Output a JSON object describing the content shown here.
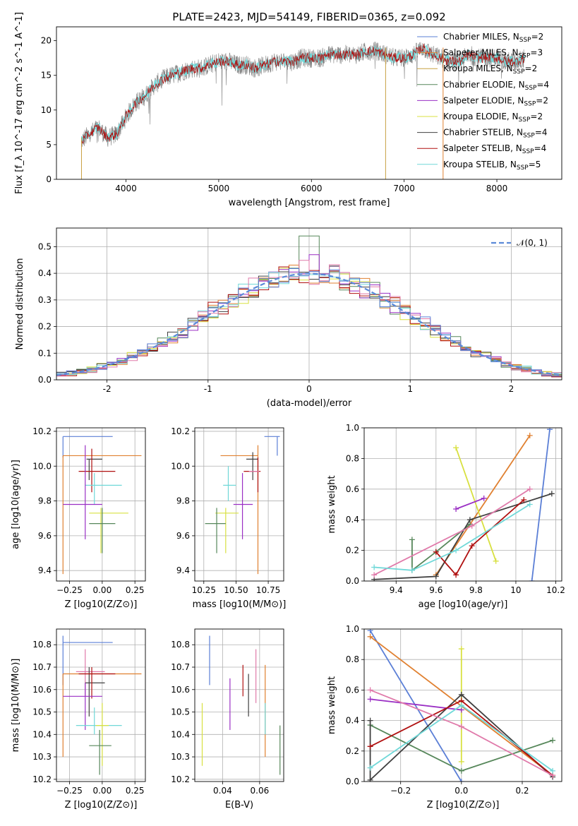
{
  "figure_title": "PLATE=2423, MJD=54149, FIBERID=0365, z=0.092",
  "colors": {
    "Chabrier MILES": "#5b7fd6",
    "Salpeter MILES": "#e08030",
    "Kroupa MILES": "#c8e038",
    "Chabrier ELODIE": "#56875a",
    "Salpeter ELODIE": "#9a2fc4",
    "Kroupa ELODIE": "#d8e040",
    "Chabrier STELIB": "#404040",
    "Salpeter STELIB": "#b01010",
    "Kroupa STELIB": "#70d8d8",
    "pink": "#e07aaa",
    "spectrum": "#808080",
    "gauss": "#5b8ad8"
  },
  "chart_data": [
    {
      "type": "line",
      "id": "spectrum",
      "title": "PLATE=2423, MJD=54149, FIBERID=0365, z=0.092",
      "xlabel": "wavelength [Angstrom, rest frame]",
      "ylabel": "Flux [f_λ 10^-17 erg cm^-2 s^-1 A^-1]",
      "xlim": [
        3250,
        8700
      ],
      "ylim": [
        0,
        22
      ],
      "xticks": [
        4000,
        5000,
        6000,
        7000,
        8000
      ],
      "yticks": [
        0,
        5,
        10,
        15,
        20
      ],
      "grid": false,
      "legend_position": "top-right",
      "legend": [
        {
          "label": "Chabrier MILES, N",
          "sub": "SSP",
          "suffix": "=2",
          "color": "#5b7fd6"
        },
        {
          "label": "Salpeter MILES, N",
          "sub": "SSP",
          "suffix": "=3",
          "color": "#e08030"
        },
        {
          "label": "Kroupa MILES, N",
          "sub": "SSP",
          "suffix": "=2",
          "color": "#c8a040"
        },
        {
          "label": "Chabrier ELODIE, N",
          "sub": "SSP",
          "suffix": "=4",
          "color": "#56875a"
        },
        {
          "label": "Salpeter ELODIE, N",
          "sub": "SSP",
          "suffix": "=2",
          "color": "#9a2fc4"
        },
        {
          "label": "Kroupa ELODIE, N",
          "sub": "SSP",
          "suffix": "=2",
          "color": "#d8e040"
        },
        {
          "label": "Chabrier STELIB, N",
          "sub": "SSP",
          "suffix": "=4",
          "color": "#404040"
        },
        {
          "label": "Salpeter STELIB, N",
          "sub": "SSP",
          "suffix": "=4",
          "color": "#b01010"
        },
        {
          "label": "Kroupa STELIB, N",
          "sub": "SSP",
          "suffix": "=5",
          "color": "#70d8d8"
        }
      ],
      "continuum_x": [
        3520,
        3600,
        3700,
        3800,
        3900,
        4000,
        4100,
        4200,
        4300,
        4400,
        4500,
        4600,
        4700,
        4800,
        4900,
        5000,
        5100,
        5200,
        5300,
        5400,
        5500,
        5600,
        5700,
        5800,
        5900,
        6000,
        6100,
        6200,
        6300,
        6400,
        6500,
        6600,
        6700,
        6800,
        6900,
        7000,
        7100,
        7200,
        7300,
        7400,
        7500,
        7600,
        7700,
        7800,
        7900,
        8000,
        8100,
        8200,
        8300
      ],
      "continuum_y": [
        5.5,
        6.5,
        7.5,
        6.0,
        6.5,
        9.0,
        11.0,
        12.0,
        13.5,
        14.5,
        15.0,
        15.5,
        16.0,
        16.0,
        16.5,
        17.0,
        17.0,
        16.5,
        16.5,
        16.0,
        16.5,
        17.0,
        17.0,
        17.0,
        17.5,
        17.5,
        17.5,
        18.0,
        18.0,
        18.0,
        18.0,
        18.5,
        18.5,
        18.0,
        17.5,
        17.5,
        18.0,
        19.0,
        18.0,
        17.5,
        17.0,
        17.0,
        18.0,
        17.5,
        17.5,
        17.5,
        17.0,
        17.0,
        17.5
      ],
      "noise_amplitude": 1.4,
      "spike_lines": [
        {
          "x": 3520,
          "ymin": 0,
          "ymax": 6,
          "color": "#c8a040"
        },
        {
          "x": 6800,
          "ymin": 0,
          "ymax": 19,
          "color": "#c8a040"
        },
        {
          "x": 7420,
          "ymin": 0,
          "ymax": 19,
          "color": "#e08030"
        }
      ]
    },
    {
      "type": "histogram",
      "id": "residuals",
      "xlabel": "(data-model)/error",
      "ylabel": "Normed distribution",
      "xlim": [
        -2.5,
        2.5
      ],
      "ylim": [
        0,
        0.57
      ],
      "xticks": [
        -2,
        -1,
        0,
        1,
        2
      ],
      "yticks": [
        0.0,
        0.1,
        0.2,
        0.3,
        0.4,
        0.5
      ],
      "grid": true,
      "legend_position": "top-right",
      "legend": [
        {
          "label": "𝒩(0, 1)",
          "style": "dashed",
          "color": "#5b8ad8"
        }
      ],
      "bin_start": -2.5,
      "bin_width": 0.1,
      "bins": 50,
      "series": [
        {
          "color": "#56875a",
          "spike_at": 0.0,
          "spike_value": 0.54
        },
        {
          "color": "#9a2fc4",
          "spike_at": 0.05,
          "spike_value": 0.47
        },
        {
          "color": "#e08030"
        },
        {
          "color": "#d8e040"
        },
        {
          "color": "#404040"
        },
        {
          "color": "#b01010"
        },
        {
          "color": "#70d8d8"
        },
        {
          "color": "#e07aaa"
        },
        {
          "color": "#5b7fd6"
        }
      ]
    },
    {
      "type": "errorbar",
      "id": "age_vs_Z",
      "xlabel": "Z [log10(Z/Z⊙)]",
      "ylabel": "age  [log10(age/yr)]",
      "xlim": [
        -0.35,
        0.33
      ],
      "ylim": [
        9.34,
        10.22
      ],
      "xticks": [
        -0.25,
        0.0,
        0.25
      ],
      "xticklabels": [
        "−0.25",
        "0.00",
        "0.25"
      ],
      "yticks": [
        9.4,
        9.6,
        9.8,
        10.0,
        10.2
      ],
      "grid": true,
      "points": [
        {
          "x": -0.3,
          "y": 10.17,
          "xlo": -0.3,
          "xhi": 0.08,
          "ylo": 10.05,
          "yhi": 10.17,
          "color": "#5b7fd6"
        },
        {
          "x": -0.3,
          "y": 10.06,
          "xlo": -0.3,
          "xhi": 0.3,
          "ylo": 10.06,
          "yhi": 10.06,
          "color": "#e08030"
        },
        {
          "x": -0.3,
          "y": 10.06,
          "xlo": -0.3,
          "xhi": -0.3,
          "ylo": 9.38,
          "yhi": 10.06,
          "color": "#e08030"
        },
        {
          "x": -0.1,
          "y": 10.04,
          "xlo": -0.12,
          "xhi": 0.0,
          "ylo": 9.92,
          "yhi": 10.04,
          "color": "#404040"
        },
        {
          "x": -0.08,
          "y": 9.97,
          "xlo": -0.18,
          "xhi": 0.1,
          "ylo": 9.85,
          "yhi": 10.1,
          "color": "#b01010"
        },
        {
          "x": -0.06,
          "y": 9.89,
          "xlo": -0.13,
          "xhi": 0.15,
          "ylo": 9.78,
          "yhi": 9.96,
          "color": "#70d8d8"
        },
        {
          "x": -0.13,
          "y": 9.78,
          "xlo": -0.3,
          "xhi": 0.0,
          "ylo": 9.58,
          "yhi": 10.12,
          "color": "#9a2fc4"
        },
        {
          "x": -0.01,
          "y": 9.73,
          "xlo": -0.1,
          "xhi": 0.2,
          "ylo": 9.5,
          "yhi": 9.76,
          "color": "#d8e040"
        },
        {
          "x": 0.0,
          "y": 9.67,
          "xlo": -0.1,
          "xhi": 0.1,
          "ylo": 9.5,
          "yhi": 9.76,
          "color": "#56875a"
        }
      ]
    },
    {
      "type": "errorbar",
      "id": "age_vs_mass",
      "xlabel": "mass [log10(M/M⊙)]",
      "ylabel": "",
      "xlim": [
        10.18,
        10.87
      ],
      "ylim": [
        9.34,
        10.22
      ],
      "xticks": [
        10.25,
        10.5,
        10.75
      ],
      "xticklabels": [
        "10.25",
        "10.50",
        "10.75"
      ],
      "yticks": [
        9.4,
        9.6,
        9.8,
        10.0,
        10.2
      ],
      "grid": true,
      "points": [
        {
          "x": 10.82,
          "y": 10.17,
          "xlo": 10.72,
          "xhi": 10.84,
          "ylo": 10.06,
          "yhi": 10.17,
          "color": "#5b7fd6"
        },
        {
          "x": 10.67,
          "y": 10.06,
          "xlo": 10.38,
          "xhi": 10.67,
          "ylo": 9.38,
          "yhi": 10.12,
          "color": "#e08030"
        },
        {
          "x": 10.63,
          "y": 10.04,
          "xlo": 10.58,
          "xhi": 10.67,
          "ylo": 9.92,
          "yhi": 10.08,
          "color": "#404040"
        },
        {
          "x": 10.67,
          "y": 9.97,
          "xlo": 10.56,
          "xhi": 10.69,
          "ylo": 9.85,
          "yhi": 10.05,
          "color": "#b01010"
        },
        {
          "x": 10.44,
          "y": 9.89,
          "xlo": 10.4,
          "xhi": 10.5,
          "ylo": 9.8,
          "yhi": 10.0,
          "color": "#70d8d8"
        },
        {
          "x": 10.55,
          "y": 9.78,
          "xlo": 10.48,
          "xhi": 10.63,
          "ylo": 9.58,
          "yhi": 9.96,
          "color": "#9a2fc4"
        },
        {
          "x": 10.42,
          "y": 9.73,
          "xlo": 10.34,
          "xhi": 10.52,
          "ylo": 9.5,
          "yhi": 9.76,
          "color": "#d8e040"
        },
        {
          "x": 10.35,
          "y": 9.67,
          "xlo": 10.26,
          "xhi": 10.42,
          "ylo": 9.5,
          "yhi": 9.76,
          "color": "#56875a"
        },
        {
          "x": 10.6,
          "y": 9.97,
          "xlo": 10.6,
          "xhi": 10.68,
          "ylo": 9.97,
          "yhi": 9.97,
          "color": "#e07aaa"
        }
      ]
    },
    {
      "type": "line",
      "id": "weight_vs_age",
      "xlabel": "age  [log10(age/yr)]",
      "ylabel": "mass weight",
      "xlim": [
        9.24,
        10.23
      ],
      "ylim": [
        0.0,
        1.0
      ],
      "xticks": [
        9.4,
        9.6,
        9.8,
        10.0,
        10.2
      ],
      "yticks": [
        0.0,
        0.2,
        0.4,
        0.6,
        0.8,
        1.0
      ],
      "grid": true,
      "series": [
        {
          "color": "#5b7fd6",
          "x": [
            10.08,
            10.17
          ],
          "y": [
            0.0,
            0.99
          ]
        },
        {
          "color": "#e08030",
          "x": [
            9.6,
            10.07
          ],
          "y": [
            0.04,
            0.95
          ]
        },
        {
          "color": "#d8e040",
          "x": [
            9.7,
            9.9
          ],
          "y": [
            0.87,
            0.13
          ]
        },
        {
          "color": "#9a2fc4",
          "x": [
            9.7,
            9.84
          ],
          "y": [
            0.47,
            0.54
          ]
        },
        {
          "color": "#56875a",
          "x": [
            9.48,
            9.48,
            9.6,
            9.77
          ],
          "y": [
            0.27,
            0.07,
            0.19,
            0.37
          ]
        },
        {
          "color": "#404040",
          "x": [
            9.29,
            9.6,
            9.77,
            10.18
          ],
          "y": [
            0.01,
            0.03,
            0.4,
            0.57
          ]
        },
        {
          "color": "#b01010",
          "x": [
            9.6,
            9.7,
            9.78,
            10.04
          ],
          "y": [
            0.19,
            0.04,
            0.23,
            0.53
          ]
        },
        {
          "color": "#e07aaa",
          "x": [
            9.29,
            9.78,
            10.07
          ],
          "y": [
            0.04,
            0.36,
            0.6
          ]
        },
        {
          "color": "#70d8d8",
          "x": [
            9.29,
            9.48,
            9.7,
            10.07
          ],
          "y": [
            0.09,
            0.07,
            0.2,
            0.5
          ]
        }
      ]
    },
    {
      "type": "errorbar",
      "id": "mass_vs_Z",
      "xlabel": "Z [log10(Z/Z⊙)]",
      "ylabel": "mass [log10(M/M⊙)]",
      "xlim": [
        -0.35,
        0.33
      ],
      "ylim": [
        10.19,
        10.87
      ],
      "xticks": [
        -0.25,
        0.0,
        0.25
      ],
      "xticklabels": [
        "−0.25",
        "0.00",
        "0.25"
      ],
      "yticks": [
        10.2,
        10.3,
        10.4,
        10.5,
        10.6,
        10.7,
        10.8
      ],
      "grid": true,
      "points": [
        {
          "x": -0.3,
          "y": 10.81,
          "xlo": -0.3,
          "xhi": 0.08,
          "ylo": 10.62,
          "yhi": 10.84,
          "color": "#5b7fd6"
        },
        {
          "x": -0.3,
          "y": 10.67,
          "xlo": -0.3,
          "xhi": 0.3,
          "ylo": 10.3,
          "yhi": 10.67,
          "color": "#e08030"
        },
        {
          "x": -0.13,
          "y": 10.68,
          "xlo": -0.2,
          "xhi": 0.02,
          "ylo": 10.57,
          "yhi": 10.78,
          "color": "#e07aaa"
        },
        {
          "x": -0.1,
          "y": 10.63,
          "xlo": -0.13,
          "xhi": 0.02,
          "ylo": 10.48,
          "yhi": 10.7,
          "color": "#404040"
        },
        {
          "x": -0.08,
          "y": 10.67,
          "xlo": -0.18,
          "xhi": 0.1,
          "ylo": 10.56,
          "yhi": 10.7,
          "color": "#b01010"
        },
        {
          "x": -0.13,
          "y": 10.57,
          "xlo": -0.3,
          "xhi": 0.0,
          "ylo": 10.42,
          "yhi": 10.63,
          "color": "#9a2fc4"
        },
        {
          "x": -0.06,
          "y": 10.44,
          "xlo": -0.2,
          "xhi": 0.15,
          "ylo": 10.4,
          "yhi": 10.52,
          "color": "#70d8d8"
        },
        {
          "x": 0.0,
          "y": 10.44,
          "xlo": -0.05,
          "xhi": 0.05,
          "ylo": 10.26,
          "yhi": 10.54,
          "color": "#d8e040"
        },
        {
          "x": -0.02,
          "y": 10.35,
          "xlo": -0.1,
          "xhi": 0.07,
          "ylo": 10.22,
          "yhi": 10.42,
          "color": "#56875a"
        }
      ]
    },
    {
      "type": "errorbar",
      "id": "mass_vs_ebv",
      "xlabel": "E(B-V)",
      "ylabel": "",
      "xlim": [
        0.025,
        0.073
      ],
      "ylim": [
        10.19,
        10.87
      ],
      "xticks": [
        0.04,
        0.06
      ],
      "xticklabels": [
        "0.04",
        "0.06"
      ],
      "yticks": [
        10.2,
        10.3,
        10.4,
        10.5,
        10.6,
        10.7,
        10.8
      ],
      "grid": true,
      "points": [
        {
          "x": 0.033,
          "ylo": 10.62,
          "yhi": 10.84,
          "color": "#5b7fd6"
        },
        {
          "x": 0.029,
          "ylo": 10.26,
          "yhi": 10.54,
          "color": "#d8e040"
        },
        {
          "x": 0.044,
          "ylo": 10.42,
          "yhi": 10.65,
          "color": "#9a2fc4"
        },
        {
          "x": 0.051,
          "ylo": 10.57,
          "yhi": 10.71,
          "color": "#b01010"
        },
        {
          "x": 0.054,
          "ylo": 10.48,
          "yhi": 10.67,
          "color": "#404040"
        },
        {
          "x": 0.058,
          "ylo": 10.54,
          "yhi": 10.78,
          "color": "#e07aaa"
        },
        {
          "x": 0.063,
          "ylo": 10.3,
          "yhi": 10.71,
          "color": "#e08030"
        },
        {
          "x": 0.063,
          "ylo": 10.4,
          "yhi": 10.54,
          "color": "#70d8d8"
        },
        {
          "x": 0.071,
          "ylo": 10.22,
          "yhi": 10.44,
          "color": "#56875a"
        }
      ]
    },
    {
      "type": "line",
      "id": "weight_vs_Z",
      "xlabel": "Z [log10(Z/Z⊙)]",
      "ylabel": "mass weight",
      "xlim": [
        -0.32,
        0.33
      ],
      "ylim": [
        0.0,
        1.0
      ],
      "xticks": [
        -0.2,
        0.0,
        0.2
      ],
      "xticklabels": [
        "−0.2",
        "0.0",
        "0.2"
      ],
      "yticks": [
        0.0,
        0.2,
        0.4,
        0.6,
        0.8,
        1.0
      ],
      "grid": true,
      "series": [
        {
          "color": "#5b7fd6",
          "x": [
            -0.3,
            0.0
          ],
          "y": [
            0.99,
            0.0
          ]
        },
        {
          "color": "#e08030",
          "x": [
            -0.3,
            0.3
          ],
          "y": [
            0.95,
            0.04
          ]
        },
        {
          "color": "#d8e040",
          "x": [
            0.0,
            0.0
          ],
          "y": [
            0.87,
            0.13
          ]
        },
        {
          "color": "#9a2fc4",
          "x": [
            -0.3,
            0.0
          ],
          "y": [
            0.54,
            0.47
          ]
        },
        {
          "color": "#56875a",
          "x": [
            -0.3,
            0.0,
            0.3
          ],
          "y": [
            0.37,
            0.07,
            0.27
          ]
        },
        {
          "color": "#404040",
          "x": [
            -0.3,
            -0.3,
            0.0,
            0.3
          ],
          "y": [
            0.4,
            0.01,
            0.57,
            0.03
          ]
        },
        {
          "color": "#b01010",
          "x": [
            -0.3,
            0.0,
            0.3
          ],
          "y": [
            0.23,
            0.53,
            0.04
          ]
        },
        {
          "color": "#e07aaa",
          "x": [
            -0.3,
            0.0,
            0.3
          ],
          "y": [
            0.6,
            0.36,
            0.04
          ]
        },
        {
          "color": "#70d8d8",
          "x": [
            -0.3,
            0.0,
            0.3
          ],
          "y": [
            0.09,
            0.5,
            0.07
          ]
        }
      ]
    }
  ]
}
